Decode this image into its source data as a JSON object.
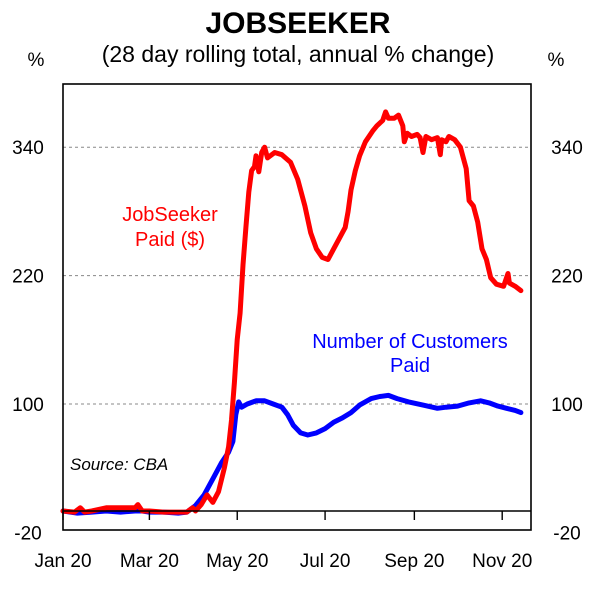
{
  "chart_data": {
    "type": "line",
    "title": "JOBSEEKER",
    "subtitle": "(28 day rolling total, annual % change)",
    "unit_left": "%",
    "unit_right": "%",
    "ylim": [
      -20,
      380
    ],
    "y_ticks": [
      -20,
      100,
      220,
      340
    ],
    "y_tick_labels": [
      "-20",
      "100",
      "220",
      "340"
    ],
    "x_ticks": [
      {
        "label": "Jan 20",
        "day": 0
      },
      {
        "label": "Mar 20",
        "day": 60
      },
      {
        "label": "May 20",
        "day": 121
      },
      {
        "label": "Jul 20",
        "day": 182
      },
      {
        "label": "Sep 20",
        "day": 244
      },
      {
        "label": "Nov 20",
        "day": 305
      }
    ],
    "xlim": [
      0,
      325
    ],
    "gridlines": true,
    "source": "Source: CBA",
    "colors": {
      "jobseeker_paid": "#ff0000",
      "customers_paid": "#0000ff",
      "grid": "#888888",
      "axis": "#000000"
    },
    "series": [
      {
        "name": "JobSeeker Paid ($)",
        "label_lines": [
          "JobSeeker",
          "Paid ($)"
        ],
        "color": "#ff0000",
        "points": [
          [
            0,
            0
          ],
          [
            8,
            -1
          ],
          [
            12,
            3
          ],
          [
            15,
            -1
          ],
          [
            20,
            0
          ],
          [
            30,
            3
          ],
          [
            40,
            3
          ],
          [
            50,
            3
          ],
          [
            52,
            6
          ],
          [
            55,
            0
          ],
          [
            60,
            0
          ],
          [
            70,
            -1
          ],
          [
            80,
            -1
          ],
          [
            86,
            -1
          ],
          [
            90,
            3
          ],
          [
            92,
            0
          ],
          [
            96,
            6
          ],
          [
            100,
            15
          ],
          [
            104,
            8
          ],
          [
            108,
            18
          ],
          [
            112,
            40
          ],
          [
            115,
            60
          ],
          [
            117,
            85
          ],
          [
            119,
            120
          ],
          [
            121,
            160
          ],
          [
            123,
            185
          ],
          [
            125,
            230
          ],
          [
            127,
            265
          ],
          [
            129,
            298
          ],
          [
            131,
            318
          ],
          [
            133,
            322
          ],
          [
            134,
            332
          ],
          [
            136,
            317
          ],
          [
            138,
            335
          ],
          [
            140,
            340
          ],
          [
            142,
            330
          ],
          [
            147,
            335
          ],
          [
            152,
            333
          ],
          [
            158,
            326
          ],
          [
            163,
            310
          ],
          [
            168,
            285
          ],
          [
            172,
            260
          ],
          [
            176,
            245
          ],
          [
            180,
            237
          ],
          [
            184,
            235
          ],
          [
            188,
            245
          ],
          [
            192,
            255
          ],
          [
            196,
            265
          ],
          [
            198,
            280
          ],
          [
            200,
            300
          ],
          [
            203,
            318
          ],
          [
            206,
            332
          ],
          [
            210,
            345
          ],
          [
            215,
            355
          ],
          [
            218,
            360
          ],
          [
            222,
            365
          ],
          [
            224,
            373
          ],
          [
            226,
            367
          ],
          [
            230,
            367
          ],
          [
            233,
            370
          ],
          [
            236,
            360
          ],
          [
            237,
            345
          ],
          [
            239,
            353
          ],
          [
            242,
            350
          ],
          [
            246,
            352
          ],
          [
            248,
            349
          ],
          [
            250,
            335
          ],
          [
            252,
            350
          ],
          [
            256,
            347
          ],
          [
            260,
            349
          ],
          [
            262,
            333
          ],
          [
            263,
            347
          ],
          [
            266,
            345
          ],
          [
            268,
            350
          ],
          [
            272,
            347
          ],
          [
            276,
            340
          ],
          [
            280,
            320
          ],
          [
            282,
            290
          ],
          [
            285,
            285
          ],
          [
            288,
            270
          ],
          [
            291,
            245
          ],
          [
            294,
            235
          ],
          [
            297,
            218
          ],
          [
            301,
            212
          ],
          [
            306,
            210
          ],
          [
            309,
            222
          ],
          [
            310,
            213
          ],
          [
            314,
            210
          ],
          [
            318,
            206
          ]
        ]
      },
      {
        "name": "Number of Customers Paid",
        "label_lines": [
          "Number of Customers",
          "Paid"
        ],
        "color": "#0000ff",
        "points": [
          [
            0,
            0
          ],
          [
            10,
            -2
          ],
          [
            20,
            -1
          ],
          [
            30,
            0
          ],
          [
            40,
            -1
          ],
          [
            50,
            0
          ],
          [
            55,
            0
          ],
          [
            60,
            -1
          ],
          [
            70,
            -1
          ],
          [
            80,
            -2
          ],
          [
            86,
            -1
          ],
          [
            92,
            5
          ],
          [
            98,
            15
          ],
          [
            104,
            30
          ],
          [
            110,
            45
          ],
          [
            115,
            55
          ],
          [
            118,
            65
          ],
          [
            120,
            90
          ],
          [
            122,
            102
          ],
          [
            124,
            97
          ],
          [
            128,
            100
          ],
          [
            134,
            103
          ],
          [
            140,
            103
          ],
          [
            146,
            100
          ],
          [
            152,
            97
          ],
          [
            156,
            90
          ],
          [
            160,
            80
          ],
          [
            165,
            73
          ],
          [
            170,
            71
          ],
          [
            176,
            73
          ],
          [
            182,
            77
          ],
          [
            188,
            83
          ],
          [
            194,
            87
          ],
          [
            200,
            92
          ],
          [
            206,
            99
          ],
          [
            214,
            105
          ],
          [
            220,
            107
          ],
          [
            226,
            108
          ],
          [
            232,
            105
          ],
          [
            240,
            102
          ],
          [
            250,
            99
          ],
          [
            260,
            96
          ],
          [
            266,
            97
          ],
          [
            274,
            98
          ],
          [
            282,
            101
          ],
          [
            290,
            103
          ],
          [
            296,
            101
          ],
          [
            302,
            98
          ],
          [
            308,
            96
          ],
          [
            314,
            94
          ],
          [
            318,
            92
          ]
        ]
      }
    ]
  }
}
